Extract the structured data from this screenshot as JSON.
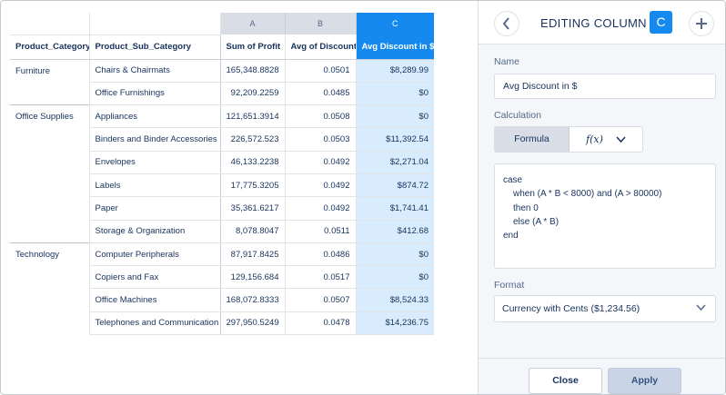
{
  "table": {
    "column_letters": [
      "A",
      "B",
      "C"
    ],
    "headers": [
      "Product_Category",
      "Product_Sub_Category",
      "Sum of Profit",
      "Avg of Discount",
      "Avg Discount in $"
    ],
    "groups": [
      {
        "category": "Furniture",
        "rows": [
          [
            "Chairs & Chairmats",
            "165,348.8828",
            "0.0501",
            "$8,289.99"
          ],
          [
            "Office Furnishings",
            "92,209.2259",
            "0.0485",
            "$0"
          ]
        ]
      },
      {
        "category": "Office Supplies",
        "rows": [
          [
            "Appliances",
            "121,651.3914",
            "0.0508",
            "$0"
          ],
          [
            "Binders and Binder Accessories",
            "226,572.523",
            "0.0503",
            "$11,392.54"
          ],
          [
            "Envelopes",
            "46,133.2238",
            "0.0492",
            "$2,271.04"
          ],
          [
            "Labels",
            "17,775.3205",
            "0.0492",
            "$874.72"
          ],
          [
            "Paper",
            "35,361.6217",
            "0.0492",
            "$1,741.41"
          ],
          [
            "Storage & Organization",
            "8,078.8047",
            "0.0511",
            "$412.68"
          ]
        ]
      },
      {
        "category": "Technology",
        "rows": [
          [
            "Computer Peripherals",
            "87,917.8425",
            "0.0486",
            "$0"
          ],
          [
            "Copiers and Fax",
            "129,156.684",
            "0.0517",
            "$0"
          ],
          [
            "Office Machines",
            "168,072.8333",
            "0.0507",
            "$8,524.33"
          ],
          [
            "Telephones and Communication",
            "297,950.5249",
            "0.0478",
            "$14,236.75"
          ]
        ]
      }
    ]
  },
  "editor": {
    "title": "EDITING COLUMN",
    "column_badge": "C",
    "name_label": "Name",
    "name_value": "Avg Discount in $",
    "calculation_label": "Calculation",
    "formula_tab": "Formula",
    "function_button": "f(x)",
    "formula_lines": [
      {
        "text": "case",
        "indent": 0
      },
      {
        "text": "when (A * B < 8000) and (A > 80000)",
        "indent": 1
      },
      {
        "text": "then 0",
        "indent": 1
      },
      {
        "text": "else (A * B)",
        "indent": 1
      },
      {
        "text": "end",
        "indent": 0
      }
    ],
    "format_label": "Format",
    "format_value": "Currency with Cents ($1,234.56)",
    "close_label": "Close",
    "apply_label": "Apply"
  },
  "colors": {
    "accent": "#1589ee",
    "selected_column_fill": "#d8ecfd",
    "header_gray": "#d8dde6",
    "text": "#16325c"
  },
  "icons": {
    "back": "chevron-left-icon",
    "add": "plus-icon",
    "function_dropdown": "chevron-down-icon",
    "format_dropdown": "chevron-down-icon"
  }
}
